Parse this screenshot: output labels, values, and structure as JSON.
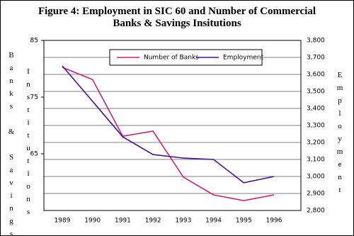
{
  "chart_data": {
    "type": "line",
    "title": "Figure 4:  Employment in SIC 60 and Number of Commercial Banks & Savings Insitutions",
    "ylabel": "Banks & Savings",
    "ylabel2": "Institutions",
    "y2label": "Employment",
    "categories": [
      "1989",
      "1990",
      "1991",
      "1992",
      "1993",
      "1994",
      "1995",
      "1996"
    ],
    "series": [
      {
        "name": "Number of Banks",
        "color": "#d0207a",
        "values": [
          80.25,
          78.1,
          68.1,
          69,
          60.9,
          57.75,
          56.75,
          57.75
        ]
      },
      {
        "name": "Employment",
        "color": "#4a10a0",
        "axis": "y2",
        "values": [
          3650,
          3442,
          3233,
          3129,
          3108,
          3100,
          2963,
          3000
        ]
      }
    ],
    "ylim": [
      55,
      85
    ],
    "yticks": [
      65,
      75,
      85
    ],
    "y2lim": [
      2800,
      3800
    ],
    "y2ticks": [
      {
        "value": 2800,
        "label": "2,800"
      },
      {
        "value": 2900,
        "label": "2,900"
      },
      {
        "value": 3000,
        "label": "3,000"
      },
      {
        "value": 3100,
        "label": "3,100"
      },
      {
        "value": 3200,
        "label": "3,200"
      },
      {
        "value": 3300,
        "label": "3,300"
      },
      {
        "value": 3400,
        "label": "3,400"
      },
      {
        "value": 3500,
        "label": "3,500"
      },
      {
        "value": 3600,
        "label": "3,600"
      },
      {
        "value": 3700,
        "label": "3,700"
      },
      {
        "value": 3800,
        "label": "3,800"
      }
    ],
    "grid": true
  }
}
